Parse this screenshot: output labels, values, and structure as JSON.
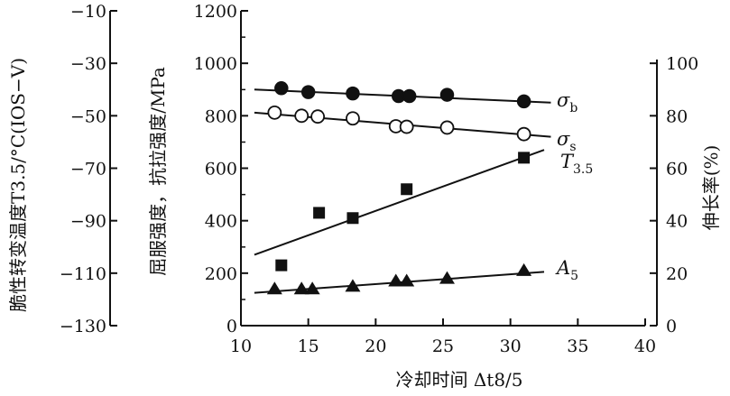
{
  "chart_data": {
    "type": "scatter",
    "xlabel": "冷却时间 Δt8/5",
    "xlim": [
      10,
      40
    ],
    "x_ticks": [
      "10",
      "15",
      "20",
      "25",
      "30",
      "35",
      "40"
    ],
    "left_outer_axis": {
      "label": "脆性转变温度T3.5/°C(IOS−V)",
      "range": [
        -130,
        -10
      ],
      "ticks": [
        "−10",
        "−30",
        "−50",
        "−70",
        "−90",
        "−110",
        "−130"
      ]
    },
    "left_inner_axis": {
      "label": "屈服强度，抗拉强度/MPa",
      "range": [
        0,
        1200
      ],
      "ticks": [
        "1200",
        "1000",
        "800",
        "600",
        "400",
        "200",
        "0"
      ]
    },
    "right_axis": {
      "label": "伸长率(%)",
      "range": [
        0,
        100
      ],
      "ticks": [
        "100",
        "80",
        "60",
        "40",
        "20",
        "0"
      ]
    },
    "grid": false,
    "series": [
      {
        "name": "σb",
        "marker": "filled-circle",
        "axis": "MPa",
        "points": [
          [
            13,
            905
          ],
          [
            15,
            890
          ],
          [
            18.3,
            885
          ],
          [
            21.7,
            875
          ],
          [
            22.5,
            875
          ],
          [
            25.3,
            880
          ],
          [
            31,
            855
          ]
        ],
        "fit": [
          [
            11,
            900
          ],
          [
            33,
            850
          ]
        ]
      },
      {
        "name": "σs",
        "marker": "open-circle",
        "axis": "MPa",
        "points": [
          [
            12.5,
            812
          ],
          [
            14.5,
            800
          ],
          [
            15.7,
            797
          ],
          [
            18.3,
            790
          ],
          [
            21.5,
            760
          ],
          [
            22.3,
            758
          ],
          [
            25.3,
            755
          ],
          [
            31,
            730
          ]
        ],
        "fit": [
          [
            11,
            812
          ],
          [
            33,
            720
          ]
        ]
      },
      {
        "name": "T3.5",
        "marker": "filled-square",
        "axis": "°C",
        "points": [
          [
            13,
            -107
          ],
          [
            15.8,
            -87
          ],
          [
            18.3,
            -89
          ],
          [
            22.3,
            -78
          ],
          [
            31,
            -66
          ]
        ],
        "fit": [
          [
            11,
            -103
          ],
          [
            32.5,
            -63
          ]
        ]
      },
      {
        "name": "A5",
        "marker": "filled-triangle",
        "axis": "%",
        "points": [
          [
            12.5,
            14
          ],
          [
            14.5,
            14
          ],
          [
            15.3,
            14
          ],
          [
            18.3,
            15
          ],
          [
            21.5,
            17
          ],
          [
            22.3,
            17
          ],
          [
            25.3,
            18
          ],
          [
            31,
            21
          ]
        ],
        "fit": [
          [
            11,
            12.5
          ],
          [
            32.5,
            20.5
          ]
        ]
      }
    ],
    "labels": [
      {
        "text": "σ",
        "sub": "b",
        "series": 0
      },
      {
        "text": "σ",
        "sub": "s",
        "series": 1
      },
      {
        "text": "T",
        "sub": "3.5",
        "series": 2
      },
      {
        "text": "A",
        "sub": "5",
        "series": 3
      }
    ],
    "colors": {
      "ink": "#111111",
      "background": "#ffffff"
    }
  }
}
